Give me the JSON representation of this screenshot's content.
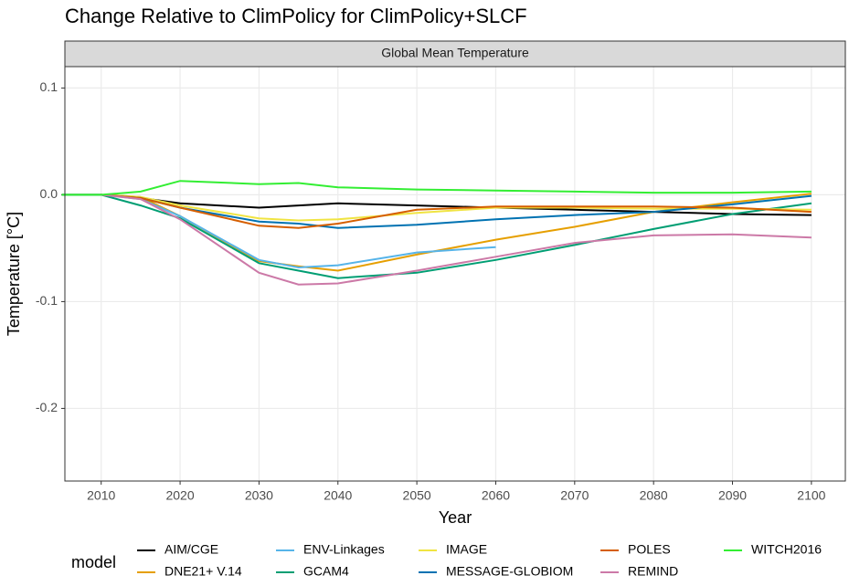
{
  "chart_data": {
    "type": "line",
    "title": "Change Relative to ClimPolicy for ClimPolicy+SLCF",
    "panel_title": "Global Mean Temperature",
    "x_label": "Year",
    "y_label": "Temperature [°C]",
    "legend_title": "model",
    "x": [
      2005,
      2010,
      2015,
      2020,
      2030,
      2035,
      2040,
      2050,
      2060,
      2070,
      2080,
      2090,
      2100
    ],
    "xlim": [
      2005.4,
      2104.3
    ],
    "xticks": [
      2010,
      2020,
      2030,
      2040,
      2050,
      2060,
      2070,
      2080,
      2090,
      2100
    ],
    "ylim": [
      -0.268,
      0.12
    ],
    "yticks": [
      {
        "value": -0.2,
        "label": "-0.2"
      },
      {
        "value": -0.1,
        "label": "-0.1"
      },
      {
        "value": 0,
        "label": "0.0"
      },
      {
        "value": 0.1,
        "label": "0.1"
      }
    ],
    "grid": true,
    "legend": "bottom",
    "series": [
      {
        "name": "AIM/CGE",
        "color": "#000000",
        "values": [
          0,
          0,
          -0.003,
          -0.008,
          -0.012,
          -0.01,
          -0.008,
          -0.01,
          -0.012,
          -0.014,
          -0.016,
          -0.018,
          -0.019
        ]
      },
      {
        "name": "DNE21+ V.14",
        "color": "#e69f00",
        "values": [
          null,
          0,
          -0.002,
          -0.02,
          -0.062,
          -0.067,
          -0.071,
          -0.056,
          -0.042,
          -0.03,
          -0.016,
          -0.007,
          0.001
        ]
      },
      {
        "name": "ENV-Linkages",
        "color": "#56b4e9",
        "values": [
          null,
          0,
          -0.004,
          -0.02,
          -0.061,
          -0.068,
          -0.066,
          -0.054,
          -0.049,
          null,
          null,
          null,
          null
        ]
      },
      {
        "name": "GCAM4",
        "color": "#009e73",
        "values": [
          0,
          0,
          -0.01,
          -0.022,
          -0.064,
          -0.071,
          -0.078,
          -0.073,
          -0.061,
          -0.047,
          -0.032,
          -0.018,
          -0.008
        ]
      },
      {
        "name": "IMAGE",
        "color": "#f0e442",
        "values": [
          null,
          0,
          -0.002,
          -0.01,
          -0.022,
          -0.024,
          -0.023,
          -0.017,
          -0.012,
          -0.012,
          -0.013,
          -0.013,
          -0.014
        ]
      },
      {
        "name": "MESSAGE-GLOBIOM",
        "color": "#0072b2",
        "values": [
          null,
          0,
          -0.003,
          -0.012,
          -0.025,
          -0.027,
          -0.031,
          -0.028,
          -0.023,
          -0.019,
          -0.016,
          -0.009,
          -0.001
        ]
      },
      {
        "name": "POLES",
        "color": "#d55e00",
        "values": [
          null,
          0,
          -0.003,
          -0.012,
          -0.029,
          -0.031,
          -0.027,
          -0.014,
          -0.011,
          -0.011,
          -0.011,
          -0.012,
          -0.016
        ]
      },
      {
        "name": "REMIND",
        "color": "#cc79a7",
        "values": [
          null,
          0,
          -0.004,
          -0.023,
          -0.073,
          -0.084,
          -0.083,
          -0.071,
          -0.058,
          -0.045,
          -0.038,
          -0.037,
          -0.04
        ]
      },
      {
        "name": "WITCH2016",
        "color": "#33ee33",
        "values": [
          0,
          0,
          0.003,
          0.013,
          0.01,
          0.011,
          0.007,
          0.005,
          0.004,
          0.003,
          0.002,
          0.002,
          0.003
        ]
      }
    ]
  }
}
